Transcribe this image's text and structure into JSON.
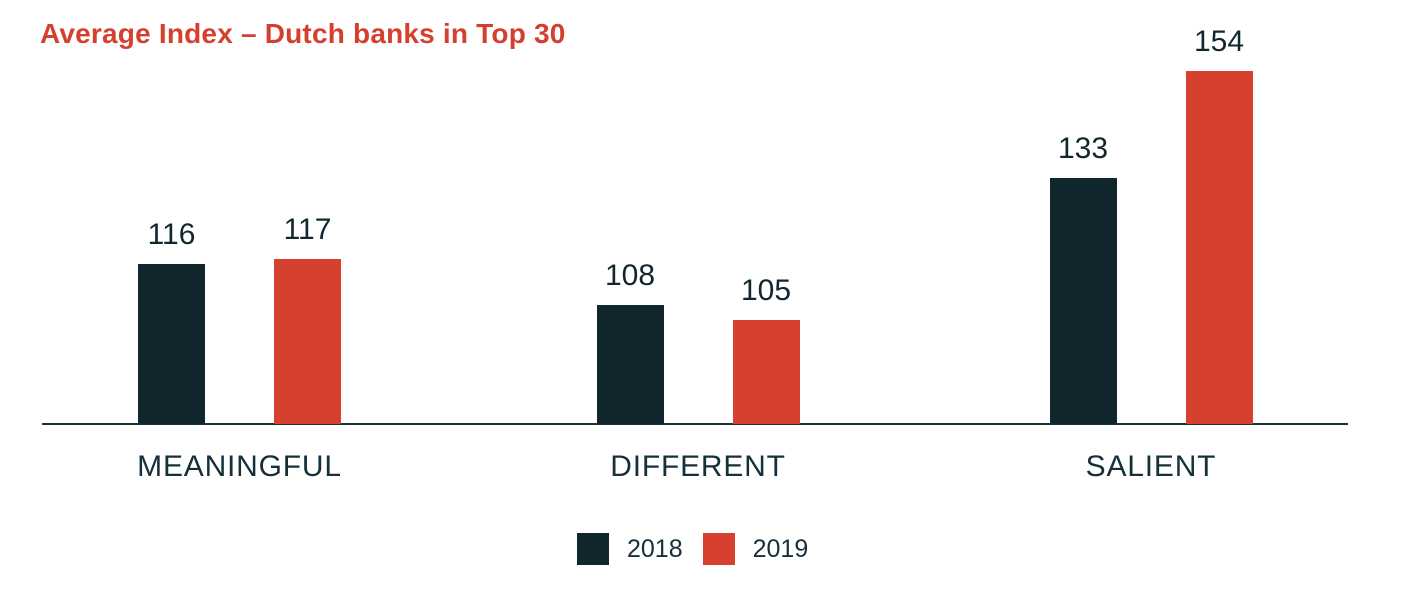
{
  "title": "Average Index – Dutch banks in Top 30",
  "colors": {
    "accent_red": "#d6402f",
    "dark_navy": "#12262e",
    "axis_line": "#1c343c",
    "title_red": "#d5402e"
  },
  "legend": {
    "items": [
      {
        "label": "2018",
        "color": "#12262e"
      },
      {
        "label": "2019",
        "color": "#d6402f"
      }
    ],
    "position": "bottom-center"
  },
  "chart_data": {
    "type": "bar",
    "title": "Average Index – Dutch banks in Top 30",
    "categories": [
      "MEANINGFUL",
      "DIFFERENT",
      "SALIENT"
    ],
    "series": [
      {
        "name": "2018",
        "color": "#12262e",
        "values": [
          116,
          108,
          133
        ]
      },
      {
        "name": "2019",
        "color": "#d6402f",
        "values": [
          117,
          105,
          154
        ]
      }
    ],
    "xlabel": "",
    "ylabel": "",
    "ylim": [
      85,
      160
    ],
    "grid": false,
    "axis_ticks_visible": false,
    "value_labels": true,
    "legend_position": "bottom"
  }
}
